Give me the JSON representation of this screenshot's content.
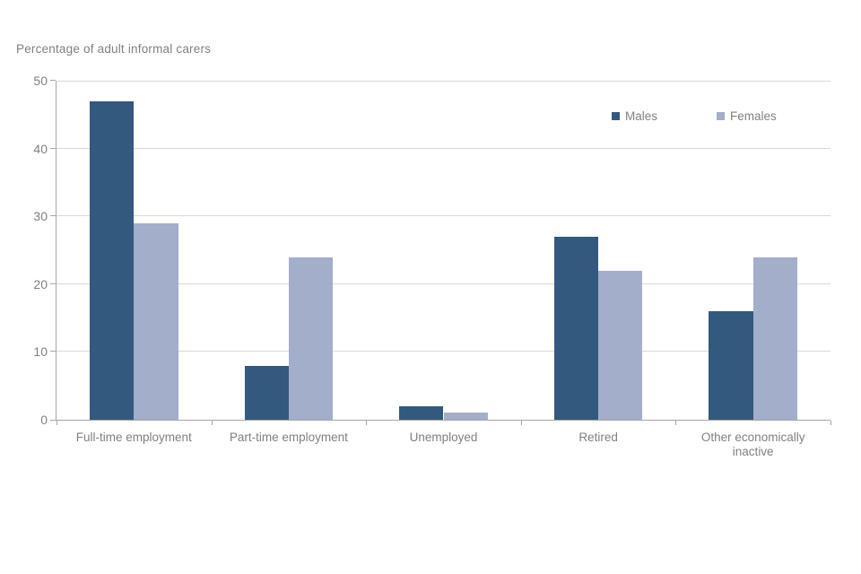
{
  "chart_data": {
    "type": "bar",
    "title": "Percentage of adult informal carers",
    "xlabel": "",
    "ylabel": "",
    "categories": [
      "Full-time employment",
      "Part-time employment",
      "Unemployed",
      "Retired",
      "Other economically inactive"
    ],
    "series": [
      {
        "name": "Males",
        "color": "#33597e",
        "values": [
          47,
          8,
          2,
          27,
          16
        ]
      },
      {
        "name": "Females",
        "color": "#a3aecb",
        "values": [
          29,
          24,
          1,
          22,
          24
        ]
      }
    ],
    "ylim": [
      0,
      50
    ],
    "yticks": [
      0,
      10,
      20,
      30,
      40,
      50
    ],
    "grid": true,
    "legend_position": "top-right-inside"
  },
  "colors": {
    "gridline": "#d9d9d9",
    "axis": "#a6a6a6",
    "text": "#808080",
    "background": "#ffffff"
  }
}
